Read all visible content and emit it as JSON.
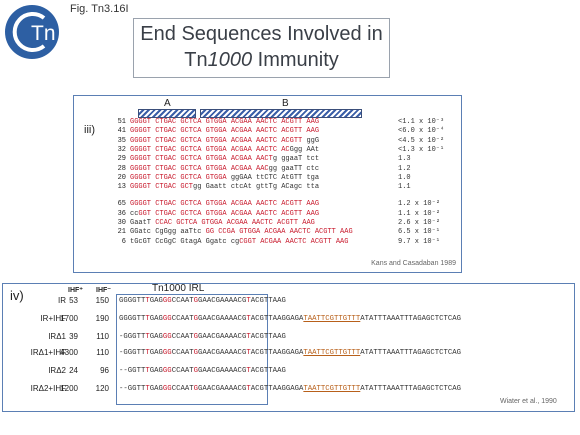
{
  "header": {
    "fig_label": "Fig. Tn3.16I",
    "logo_text": "Tn",
    "title_line1": "End Sequences Involved in",
    "title_line2_italic": "1000",
    "title_line2_prefix": "Tn",
    "title_line2_suffix": " Immunity"
  },
  "panel_iii": {
    "label": "iii)",
    "bar_a_label": "A",
    "bar_b_label": "B",
    "credit": "Kans and Casadaban 1989",
    "rows": [
      {
        "num": "51",
        "red": "GGGGT CTGAC GCTCA GTGGA ACGAA AACTC ACGTT AAG",
        "blk": "",
        "val": "<1.1 x 10⁻³"
      },
      {
        "num": "41",
        "red": "GGGGT CTGAC GCTCA GTGGA ACGAA AACTC ACGTT AAG",
        "blk": "",
        "val": "<6.0 x 10⁻⁴"
      },
      {
        "num": "35",
        "red": "GGGGT CTGAC GCTCA GTGGA ACGAA AACTC ACGTT ",
        "blk": "ggG",
        "val": "<4.5 x 10⁻²"
      },
      {
        "num": "32",
        "red": "GGGGT CTGAC GCTCA GTGGA ACGAA AACTC AC",
        "blk": "Ggg AAt",
        "val": "<1.3 x 10⁻¹"
      },
      {
        "num": "29",
        "red": "GGGGT CTGAC GCTCA GTGGA ACGAA AACT",
        "blk": "g ggaaT tct",
        "val": "1.3"
      },
      {
        "num": "28",
        "red": "GGGGT CTGAC GCTCA GTGGA ACGAA AAC",
        "blk": "gg gaaTT ctc",
        "val": "1.2"
      },
      {
        "num": "20",
        "red": "GGGGT CTGAC GCTCA GTGGA ",
        "blk": "ggGAA ttCTC AtGTT tga",
        "val": "1.0"
      },
      {
        "num": "13",
        "red": "GGGGT CTGAC GCT",
        "blk": "gg Gaatt ctcAt gttTg ACagc tta",
        "val": "1.1"
      },
      {
        "num": "65",
        "red": "GGGGT CTGAC GCTCA GTGGA ACGAA AACTC ACGTT AAG",
        "blk": "",
        "val": "1.2 x 10⁻²"
      },
      {
        "num": "36",
        "red": "GGT CTGAC GCTCA GTGGA ACGAA AACTC ACGTT AAG",
        "blk": "cc",
        "val": "1.1 x 10⁻²"
      },
      {
        "num": "30",
        "red": "CCAC GCTCA GTGGA ACGAA AACTC ACGTT AAG",
        "blk": "GaatT ",
        "val": "2.6 x 10⁻²"
      },
      {
        "num": "21",
        "red": "GG CCGA GTGGA ACGAA AACTC ACGTT AAG",
        "blk": "GGatc CgGgg aaTtc ",
        "val": "6.5 x 10⁻¹"
      },
      {
        "num": "6",
        "red": "CGGT ACGAA AACTC ACGTT AAG",
        "blk": "tGcGT CcGgC GtagA Ggatc cg",
        "val": "9.7 x 10⁻¹"
      }
    ]
  },
  "panel_iv": {
    "label": "iv)",
    "tn_label": "Tn1000 IRL",
    "hdr_ihf_minus": "IHF⁺",
    "hdr_ihf_plus": "IHF⁻",
    "credit": "Wiater et al., 1990",
    "rows": [
      {
        "name": "IR",
        "a": "53",
        "b": "150"
      },
      {
        "name": "IR+IHF",
        "a": "1700",
        "b": "190"
      },
      {
        "name": "IRΔ1",
        "a": "39",
        "b": "110"
      },
      {
        "name": "IRΔ1+IHF",
        "a": "4300",
        "b": "110"
      },
      {
        "name": "IRΔ2",
        "a": "24",
        "b": "96"
      },
      {
        "name": "IRΔ2+IHF",
        "a": "1200",
        "b": "120"
      }
    ],
    "seq_main": "GGGGTTTGAGGGCCAATGGAACGAAAACGTACGTTAAG",
    "seq_main_d1": "-GGGTTTGAGGGCCAATGGAACGAAAACGTACGTTAAG",
    "seq_main_d2": "--GGTTTGAGGGCCAATGGAACGAAAACGTACGTTAAG",
    "ext_gaga": "GAGA",
    "ext_underlined": "TAATTCGTTGTTT",
    "ext_rest": "ATATTTAAATTTAGAGCTCTCAG",
    "ext_gaga_d1": "GA",
    "ext_gaga_d2": "GA"
  },
  "colors": {
    "accent_red": "#c8182b",
    "panel_border": "#5b7fb4",
    "underline": "#b8601a"
  }
}
